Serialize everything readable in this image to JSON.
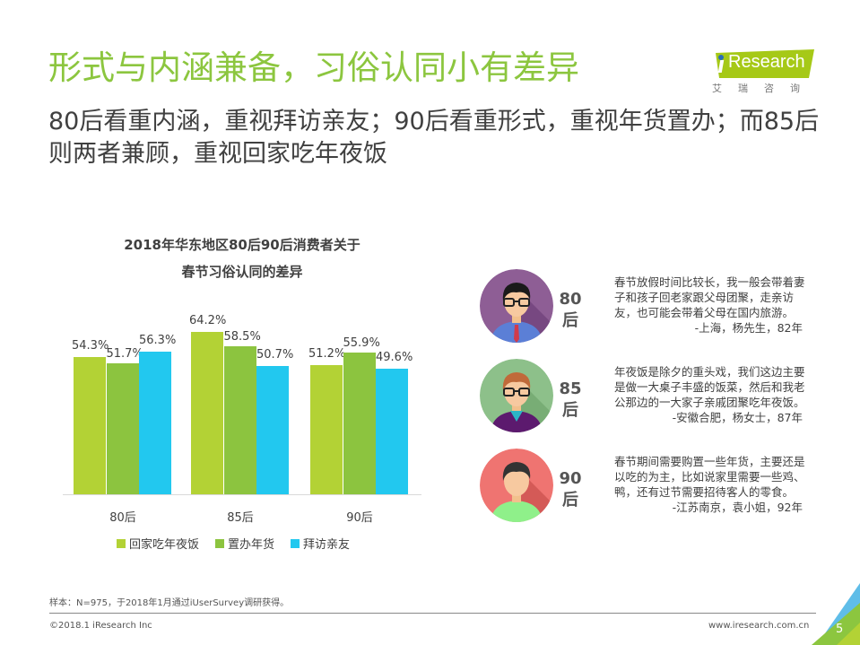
{
  "header": {
    "title": "形式与内涵兼备，习俗认同小有差异",
    "subtitle": "80后看重内涵，重视拜访亲友；90后看重形式，重视年货置办；而85后则两者兼顾，重视回家吃年夜饭",
    "logo_text": "Research",
    "logo_cn": "艾瑞咨询",
    "logo_color": "#a6c917"
  },
  "chart_data": {
    "type": "bar",
    "title": "2018年华东地区80后90后消费者关于春节习俗认同的差异",
    "title_line1": "2018年华东地区80后90后消费者关于",
    "title_line2": "春节习俗认同的差异",
    "categories": [
      "80后",
      "85后",
      "90后"
    ],
    "series": [
      {
        "name": "回家吃年夜饭",
        "color": "#b3d235",
        "values": [
          54.3,
          64.2,
          51.2
        ],
        "labels": [
          "54.3%",
          "64.2%",
          "51.2%"
        ]
      },
      {
        "name": "置办年货",
        "color": "#8cc43f",
        "values": [
          51.7,
          58.5,
          55.9
        ],
        "labels": [
          "51.7%",
          "58.5%",
          "55.9%"
        ]
      },
      {
        "name": "拜访亲友",
        "color": "#22c8ef",
        "values": [
          56.3,
          50.7,
          49.6
        ],
        "labels": [
          "56.3%",
          "50.7%",
          "49.6%"
        ]
      }
    ],
    "xlabel": "",
    "ylabel": "",
    "ylim": [
      0,
      75
    ],
    "grid": false,
    "legend_position": "bottom",
    "unit": "%"
  },
  "quotes": [
    {
      "generation_num": "80",
      "generation_suffix": "后",
      "text": "春节放假时间比较长，我一般会带着妻子和孩子回老家跟父母团聚，走亲访友，也可能会带着父母在国内旅游。",
      "source": "-上海，杨先生，82年",
      "avatar_bg": "#8e5e95"
    },
    {
      "generation_num": "85",
      "generation_suffix": "后",
      "text": "年夜饭是除夕的重头戏，我们这边主要是做一大桌子丰盛的饭菜，然后和我老公那边的一大家子亲戚团聚吃年夜饭。",
      "source": "-安徽合肥，杨女士，87年",
      "avatar_bg": "#8dc08a"
    },
    {
      "generation_num": "90",
      "generation_suffix": "后",
      "text": "春节期间需要购置一些年货，主要还是以吃的为主，比如说家里需要一些鸡、鸭，还有过节需要招待客人的零食。",
      "source": "-江苏南京，袁小姐，92年",
      "avatar_bg": "#ef7471"
    }
  ],
  "footer": {
    "note": "样本：N=975，于2018年1月通过iUserSurvey调研获得。",
    "copyright": "©2018.1 iResearch Inc",
    "website": "www.iresearch.com.cn",
    "page_number": "5"
  }
}
